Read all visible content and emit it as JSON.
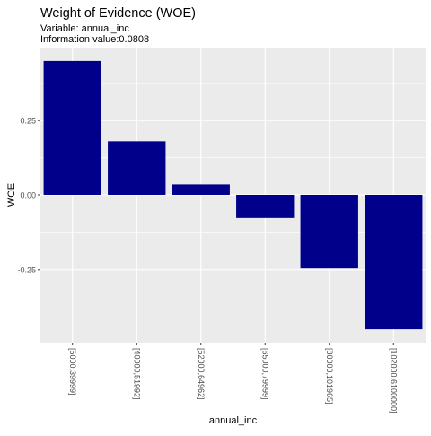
{
  "chart_data": {
    "type": "bar",
    "title": "Weight of Evidence (WOE)",
    "subtitle_lines": [
      "Variable: annual_inc",
      "Information value:0.0808"
    ],
    "xlabel": "annual_inc",
    "ylabel": "WOE",
    "categories": [
      "[6000,39999]",
      "[40000,51992]",
      "[52000,64962]",
      "[65000,79999]",
      "[80000,101965]",
      "[102000,6100000]"
    ],
    "values": [
      0.45,
      0.18,
      0.035,
      -0.075,
      -0.245,
      -0.45
    ],
    "ylim": [
      -0.495,
      0.495
    ],
    "yticks": [
      -0.25,
      0.0,
      0.25
    ],
    "ytick_labels": [
      "-0.25",
      "0.00",
      "0.25"
    ],
    "grid": true,
    "legend": "none",
    "bar_color": "#00008B",
    "panel_color": "#EBEBEB",
    "grid_color": "#FFFFFF"
  }
}
